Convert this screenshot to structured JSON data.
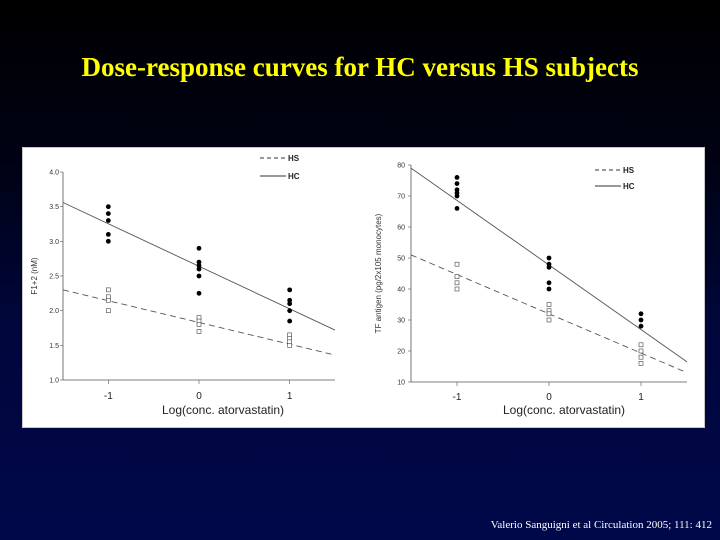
{
  "slide": {
    "title": "Dose-response curves for HC versus HS subjects",
    "citation": "Valerio Sanguigni et al Circulation 2005; 111: 412"
  },
  "colors": {
    "title": "#ffff00",
    "background_top": "#000000",
    "background_bottom": "#00084a",
    "citation": "#ffffff",
    "hc_marker": "#000000",
    "hs_marker": "#ffffff"
  },
  "chart_data": [
    {
      "type": "scatter",
      "xlabel": "Log(conc. atorvastatin)",
      "ylabel": "F1+2 (nM)",
      "x_ticks": [
        -1,
        0,
        1
      ],
      "x_tick_labels": [
        "-1",
        "0",
        "1"
      ],
      "xlim": [
        -1.5,
        1.5
      ],
      "y_ticks": [
        1.0,
        1.5,
        2.0,
        2.5,
        3.0,
        3.5,
        4.0
      ],
      "y_tick_labels": [
        "1.0",
        "1.5",
        "2.0",
        "2.5",
        "3.0",
        "3.5",
        "4.0"
      ],
      "ylim": [
        1.0,
        4.0
      ],
      "legend": {
        "position": "top-right",
        "entries": [
          "HS",
          "HC"
        ]
      },
      "series": [
        {
          "name": "HC",
          "marker": "filled-circle",
          "line": "solid",
          "points": [
            [
              -1,
              3.5
            ],
            [
              -1,
              3.4
            ],
            [
              -1,
              3.3
            ],
            [
              -1,
              3.1
            ],
            [
              -1,
              3.0
            ],
            [
              0,
              2.9
            ],
            [
              0,
              2.7
            ],
            [
              0,
              2.65
            ],
            [
              0,
              2.6
            ],
            [
              0,
              2.5
            ],
            [
              0,
              2.25
            ],
            [
              1,
              2.3
            ],
            [
              1,
              2.15
            ],
            [
              1,
              2.1
            ],
            [
              1,
              2.0
            ],
            [
              1,
              1.85
            ]
          ],
          "fit": {
            "x": [
              -1.5,
              1.5
            ],
            "y": [
              3.56,
              1.72
            ]
          }
        },
        {
          "name": "HS",
          "marker": "open-square",
          "line": "dashed",
          "points": [
            [
              -1,
              2.3
            ],
            [
              -1,
              2.2
            ],
            [
              -1,
              2.15
            ],
            [
              -1,
              2.0
            ],
            [
              0,
              1.9
            ],
            [
              0,
              1.85
            ],
            [
              0,
              1.8
            ],
            [
              0,
              1.7
            ],
            [
              1,
              1.65
            ],
            [
              1,
              1.6
            ],
            [
              1,
              1.55
            ],
            [
              1,
              1.5
            ]
          ],
          "fit": {
            "x": [
              -1.5,
              1.5
            ],
            "y": [
              2.3,
              1.36
            ]
          }
        }
      ]
    },
    {
      "type": "scatter",
      "xlabel": "Log(conc. atorvastatin)",
      "ylabel": "TF antigen (pg/2x105 monocytes)",
      "x_ticks": [
        -1,
        0,
        1
      ],
      "x_tick_labels": [
        "-1",
        "0",
        "1"
      ],
      "xlim": [
        -1.5,
        1.5
      ],
      "y_ticks": [
        10,
        20,
        30,
        40,
        50,
        60,
        70,
        80
      ],
      "y_tick_labels": [
        "10",
        "20",
        "30",
        "40",
        "50",
        "60",
        "70",
        "80"
      ],
      "ylim": [
        10,
        80
      ],
      "legend": {
        "position": "top-right",
        "entries": [
          "HS",
          "HC"
        ]
      },
      "series": [
        {
          "name": "HC",
          "marker": "filled-circle",
          "line": "solid",
          "points": [
            [
              -1,
              76
            ],
            [
              -1,
              74
            ],
            [
              -1,
              72
            ],
            [
              -1,
              71
            ],
            [
              -1,
              70
            ],
            [
              -1,
              66
            ],
            [
              0,
              50
            ],
            [
              0,
              48
            ],
            [
              0,
              47
            ],
            [
              0,
              42
            ],
            [
              0,
              40
            ],
            [
              1,
              32
            ],
            [
              1,
              30
            ],
            [
              1,
              28
            ]
          ],
          "fit": {
            "x": [
              -1.5,
              1.5
            ],
            "y": [
              79,
              16.5
            ]
          }
        },
        {
          "name": "HS",
          "marker": "open-square",
          "line": "dashed",
          "points": [
            [
              -1,
              48
            ],
            [
              -1,
              44
            ],
            [
              -1,
              42
            ],
            [
              -1,
              40
            ],
            [
              0,
              35
            ],
            [
              0,
              33
            ],
            [
              0,
              32
            ],
            [
              0,
              30
            ],
            [
              1,
              22
            ],
            [
              1,
              20
            ],
            [
              1,
              18
            ],
            [
              1,
              16
            ]
          ],
          "fit": {
            "x": [
              -1.5,
              1.5
            ],
            "y": [
              51,
              13
            ]
          }
        }
      ]
    }
  ]
}
